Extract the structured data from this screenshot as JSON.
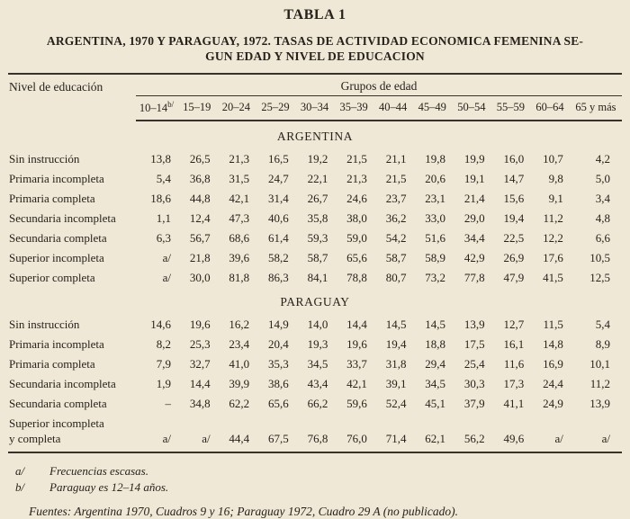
{
  "page": {
    "title": "TABLA 1",
    "subtitle_line1": "ARGENTINA, 1970 Y PARAGUAY, 1972. TASAS DE ACTIVIDAD ECONOMICA FEMENINA SE-",
    "subtitle_line2": "GUN EDAD Y NIVEL DE EDUCACION"
  },
  "table": {
    "row_header": "Nivel de educación",
    "col_group_header": "Grupos de edad",
    "age_note_marker": "b/",
    "age_groups": [
      "10–14",
      "15–19",
      "20–24",
      "25–29",
      "30–34",
      "35–39",
      "40–44",
      "45–49",
      "50–54",
      "55–59",
      "60–64",
      "65 y más"
    ],
    "sections": [
      {
        "name": "ARGENTINA",
        "rows": [
          {
            "label": "Sin instrucción",
            "values": [
              "13,8",
              "26,5",
              "21,3",
              "16,5",
              "19,2",
              "21,5",
              "21,1",
              "19,8",
              "19,9",
              "16,0",
              "10,7",
              "4,2"
            ]
          },
          {
            "label": "Primaria incompleta",
            "values": [
              "5,4",
              "36,8",
              "31,5",
              "24,7",
              "22,1",
              "21,3",
              "21,5",
              "20,6",
              "19,1",
              "14,7",
              "9,8",
              "5,0"
            ]
          },
          {
            "label": "Primaria completa",
            "values": [
              "18,6",
              "44,8",
              "42,1",
              "31,4",
              "26,7",
              "24,6",
              "23,7",
              "23,1",
              "21,4",
              "15,6",
              "9,1",
              "3,4"
            ]
          },
          {
            "label": "Secundaria incompleta",
            "values": [
              "1,1",
              "12,4",
              "47,3",
              "40,6",
              "35,8",
              "38,0",
              "36,2",
              "33,0",
              "29,0",
              "19,4",
              "11,2",
              "4,8"
            ]
          },
          {
            "label": "Secundaria completa",
            "values": [
              "6,3",
              "56,7",
              "68,6",
              "61,4",
              "59,3",
              "59,0",
              "54,2",
              "51,6",
              "34,4",
              "22,5",
              "12,2",
              "6,6"
            ]
          },
          {
            "label": "Superior incompleta",
            "values": [
              "a/",
              "21,8",
              "39,6",
              "58,2",
              "58,7",
              "65,6",
              "58,7",
              "58,9",
              "42,9",
              "26,9",
              "17,6",
              "10,5"
            ]
          },
          {
            "label": "Superior completa",
            "values": [
              "a/",
              "30,0",
              "81,8",
              "86,3",
              "84,1",
              "78,8",
              "80,7",
              "73,2",
              "77,8",
              "47,9",
              "41,5",
              "12,5"
            ]
          }
        ]
      },
      {
        "name": "PARAGUAY",
        "rows": [
          {
            "label": "Sin instrucción",
            "values": [
              "14,6",
              "19,6",
              "16,2",
              "14,9",
              "14,0",
              "14,4",
              "14,5",
              "14,5",
              "13,9",
              "12,7",
              "11,5",
              "5,4"
            ]
          },
          {
            "label": "Primaria incompleta",
            "values": [
              "8,2",
              "25,3",
              "23,4",
              "20,4",
              "19,3",
              "19,6",
              "19,4",
              "18,8",
              "17,5",
              "16,1",
              "14,8",
              "8,9"
            ]
          },
          {
            "label": "Primaria completa",
            "values": [
              "7,9",
              "32,7",
              "41,0",
              "35,3",
              "34,5",
              "33,7",
              "31,8",
              "29,4",
              "25,4",
              "11,6",
              "16,9",
              "10,1"
            ]
          },
          {
            "label": "Secundaria incompleta",
            "values": [
              "1,9",
              "14,4",
              "39,9",
              "38,6",
              "43,4",
              "42,1",
              "39,1",
              "34,5",
              "30,3",
              "17,3",
              "24,4",
              "11,2"
            ]
          },
          {
            "label": "Secundaria completa",
            "values": [
              "–",
              "34,8",
              "62,2",
              "65,6",
              "66,2",
              "59,6",
              "52,4",
              "45,1",
              "37,9",
              "41,1",
              "24,9",
              "13,9"
            ]
          },
          {
            "label": "Superior incompleta\ny completa",
            "values": [
              "a/",
              "a/",
              "44,4",
              "67,5",
              "76,8",
              "76,0",
              "71,4",
              "62,1",
              "56,2",
              "49,6",
              "a/",
              "a/"
            ]
          }
        ]
      }
    ]
  },
  "footnotes": [
    {
      "marker": "a/",
      "text": "Frecuencias escasas."
    },
    {
      "marker": "b/",
      "text": "Paraguay es 12–14 años."
    }
  ],
  "sources": {
    "text": "Fuentes: Argentina 1970, Cuadros 9 y 16; Paraguay 1972, Cuadro 29 A (no publicado)."
  }
}
